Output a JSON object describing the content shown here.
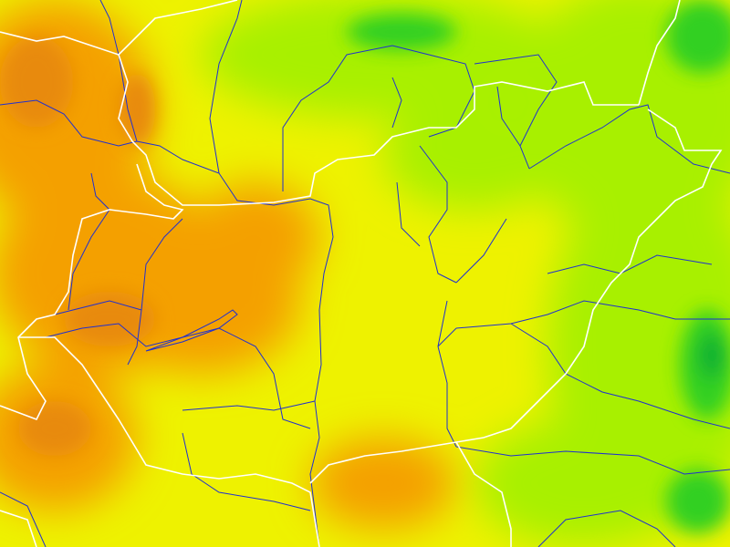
{
  "map": {
    "type": "weather-field-map",
    "legend": null,
    "colors": {
      "base": "#eef200",
      "warm": "#f4a000",
      "hot": "#e88a10",
      "cool": "#a8f000",
      "cold": "#30d020",
      "coldest": "#10b030",
      "rivers": "#2030d0",
      "borders": "#ffffff"
    }
  }
}
